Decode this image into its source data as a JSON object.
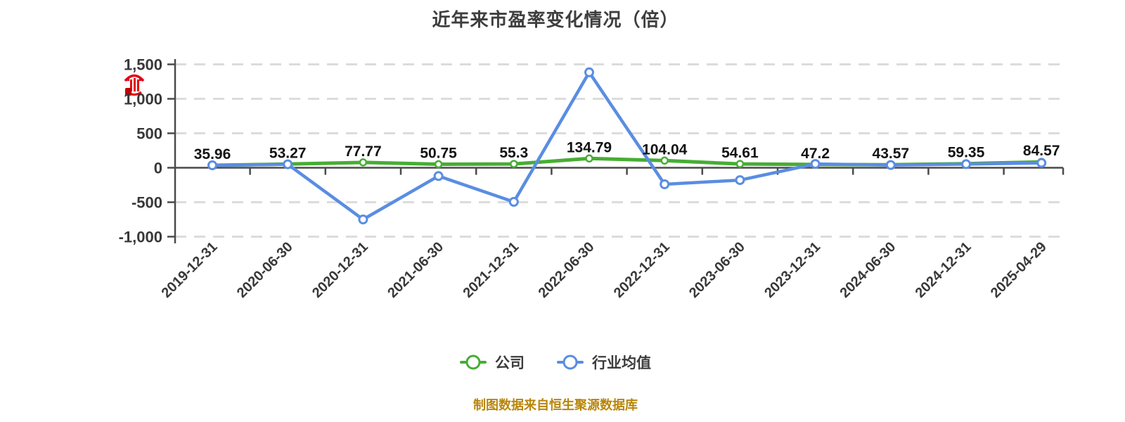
{
  "chart_data": {
    "type": "line",
    "title": "近年来市盈率变化情况（倍）",
    "categories": [
      "2019-12-31",
      "2020-06-30",
      "2020-12-31",
      "2021-06-30",
      "2021-12-31",
      "2022-06-30",
      "2022-12-31",
      "2023-06-30",
      "2023-12-31",
      "2024-06-30",
      "2024-12-31",
      "2025-04-29"
    ],
    "series": [
      {
        "name": "公司",
        "color": "#47ad34",
        "marker": "circle-white-fill",
        "data_labels": true,
        "values": [
          35.96,
          53.27,
          77.77,
          50.75,
          55.3,
          134.79,
          104.04,
          54.61,
          47.2,
          43.57,
          59.35,
          84.57
        ]
      },
      {
        "name": "行业均值",
        "color": "#5a8de2",
        "marker": "circle-white-fill",
        "data_labels": false,
        "values": [
          36,
          50,
          -750,
          -120,
          -495,
          1385,
          -240,
          -180,
          55,
          40,
          52,
          70
        ]
      }
    ],
    "ylim": [
      -1000,
      1500
    ],
    "yticks": [
      1500,
      1000,
      500,
      0,
      -500,
      -1000
    ],
    "grid": "dashed-horizontal",
    "gridline_color": "#dcdcdc",
    "axis_color": "#4a4a4a",
    "legend_position": "bottom"
  },
  "legend_note": "legend labels bound from chart_data.series names",
  "watermark": {
    "icon": "red-seal-stamp-icon",
    "color": "#e60012"
  },
  "footer": {
    "source_note": "制图数据来自恒生聚源数据库"
  }
}
